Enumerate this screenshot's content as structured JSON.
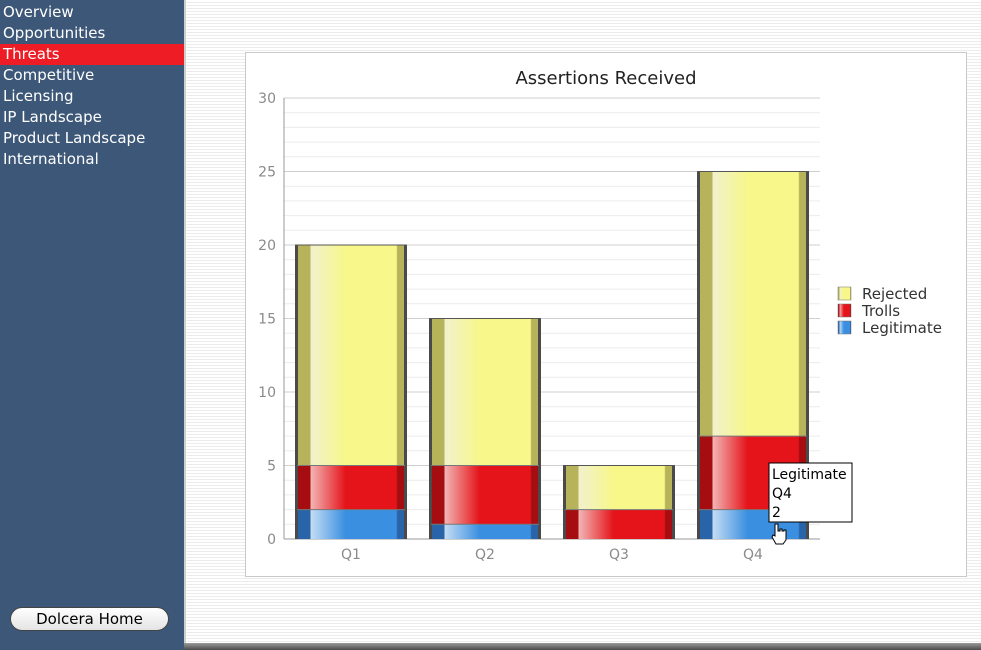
{
  "nav": {
    "items": [
      {
        "label": "Overview",
        "active": false
      },
      {
        "label": "Opportunities",
        "active": false
      },
      {
        "label": "Threats",
        "active": true
      },
      {
        "label": "Competitive",
        "active": false
      },
      {
        "label": "Licensing",
        "active": false
      },
      {
        "label": "IP Landscape",
        "active": false
      },
      {
        "label": "Product Landscape",
        "active": false
      },
      {
        "label": "International",
        "active": false
      }
    ],
    "home_label": "Dolcera Home"
  },
  "colors": {
    "sidebar": "#3d5778",
    "active_nav": "#ee1c25",
    "legitimate": "#3a8fe0",
    "trolls": "#e4141a",
    "rejected": "#f7f78a"
  },
  "chart_data": {
    "type": "bar",
    "stacked": true,
    "title": "Assertions Received",
    "categories": [
      "Q1",
      "Q2",
      "Q3",
      "Q4"
    ],
    "series": [
      {
        "name": "Legitimate",
        "values": [
          2,
          1,
          0,
          2
        ]
      },
      {
        "name": "Trolls",
        "values": [
          3,
          4,
          2,
          5
        ]
      },
      {
        "name": "Rejected",
        "values": [
          15,
          10,
          3,
          18
        ]
      }
    ],
    "ylim": [
      0,
      30
    ],
    "yticks": [
      0,
      5,
      10,
      15,
      20,
      25,
      30
    ],
    "grid": true,
    "legend": "right",
    "tooltip": {
      "series": "Legitimate",
      "category": "Q4",
      "value": "2"
    }
  }
}
